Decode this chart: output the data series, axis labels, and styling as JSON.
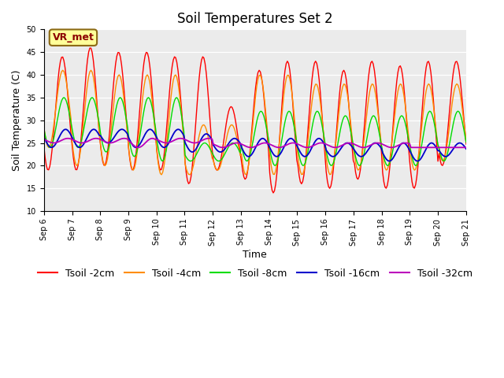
{
  "title": "Soil Temperatures Set 2",
  "xlabel": "Time",
  "ylabel": "Soil Temperature (C)",
  "ylim": [
    10,
    50
  ],
  "yticks": [
    10,
    15,
    20,
    25,
    30,
    35,
    40,
    45,
    50
  ],
  "background_color": "#ebebeb",
  "series": [
    {
      "label": "Tsoil -2cm",
      "color": "#FF0000"
    },
    {
      "label": "Tsoil -4cm",
      "color": "#FF8C00"
    },
    {
      "label": "Tsoil -8cm",
      "color": "#00DD00"
    },
    {
      "label": "Tsoil -16cm",
      "color": "#0000CC"
    },
    {
      "label": "Tsoil -32cm",
      "color": "#BB00BB"
    }
  ],
  "xtick_labels": [
    "Sep 6",
    "Sep 7",
    "Sep 8",
    "Sep 9",
    "Sep 10",
    "Sep 11",
    "Sep 12",
    "Sep 13",
    "Sep 14",
    "Sep 15",
    "Sep 16",
    "Sep 17",
    "Sep 18",
    "Sep 19",
    "Sep 20",
    "Sep 21"
  ],
  "annotation_text": "VR_met",
  "annotation_color": "#8B0000",
  "annotation_bg": "#FFFF99",
  "annotation_border": "#8B6914",
  "title_fontsize": 12,
  "axis_label_fontsize": 9,
  "tick_fontsize": 7,
  "legend_fontsize": 9
}
